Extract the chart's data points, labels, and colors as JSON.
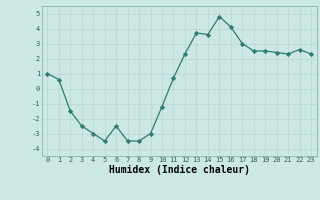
{
  "x": [
    0,
    1,
    2,
    3,
    4,
    5,
    6,
    7,
    8,
    9,
    10,
    11,
    12,
    13,
    14,
    15,
    16,
    17,
    18,
    19,
    20,
    21,
    22,
    23
  ],
  "y": [
    1.0,
    0.6,
    -1.5,
    -2.5,
    -3.0,
    -3.5,
    -2.5,
    -3.5,
    -3.5,
    -3.0,
    -1.2,
    0.7,
    2.3,
    3.7,
    3.6,
    4.8,
    4.1,
    3.0,
    2.5,
    2.5,
    2.4,
    2.3,
    2.6,
    2.3
  ],
  "line_color": "#2e7d6e",
  "marker": "D",
  "marker_size": 2.2,
  "bg_color": "#cce8e4",
  "grid_color": "#b8d8d2",
  "xlabel": "Humidex (Indice chaleur)",
  "xlim": [
    -0.5,
    23.5
  ],
  "ylim": [
    -4.5,
    5.5
  ],
  "yticks": [
    -4,
    -3,
    -2,
    -1,
    0,
    1,
    2,
    3,
    4,
    5
  ],
  "xticks": [
    0,
    1,
    2,
    3,
    4,
    5,
    6,
    7,
    8,
    9,
    10,
    11,
    12,
    13,
    14,
    15,
    16,
    17,
    18,
    19,
    20,
    21,
    22,
    23
  ],
  "tick_fontsize": 5.0,
  "label_fontsize": 7.0
}
